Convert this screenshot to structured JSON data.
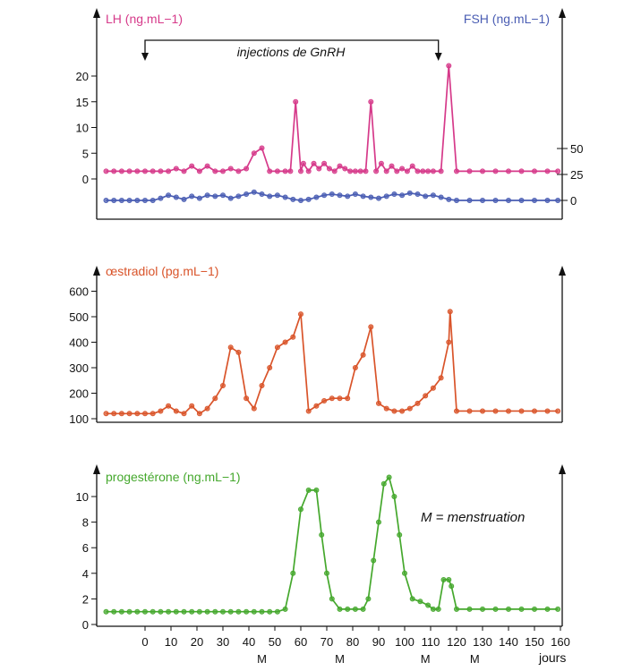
{
  "chart_data": [
    {
      "type": "line",
      "panel": "LH / FSH",
      "annotation": "injections de GnRH",
      "x_range": [
        -15,
        160
      ],
      "series": [
        {
          "name": "LH (ng.mL−1)",
          "axis": "left",
          "color": "#d63a8a",
          "ylim": [
            0,
            24
          ],
          "ticks": [
            0,
            5,
            10,
            15,
            20
          ],
          "x": [
            -15,
            -12,
            -9,
            -6,
            -3,
            0,
            3,
            6,
            9,
            12,
            15,
            18,
            21,
            24,
            27,
            30,
            33,
            36,
            39,
            42,
            45,
            48,
            51,
            54,
            56,
            58,
            60,
            61,
            63,
            65,
            67,
            69,
            71,
            73,
            75,
            77,
            79,
            81,
            83,
            85,
            87,
            89,
            91,
            93,
            95,
            97,
            99,
            101,
            103,
            105,
            107,
            109,
            111,
            114,
            117,
            120,
            125,
            130,
            135,
            140,
            145,
            150,
            155,
            159
          ],
          "values": [
            1.5,
            1.5,
            1.5,
            1.5,
            1.5,
            1.5,
            1.5,
            1.5,
            1.5,
            2,
            1.5,
            2.5,
            1.5,
            2.5,
            1.5,
            1.5,
            2,
            1.5,
            2,
            5,
            6,
            1.5,
            1.5,
            1.5,
            1.5,
            15,
            1.5,
            3,
            1.5,
            3,
            2,
            3,
            2,
            1.5,
            2.5,
            2,
            1.5,
            1.5,
            1.5,
            1.5,
            15,
            1.5,
            3,
            1.5,
            2.5,
            1.5,
            2,
            1.5,
            2.5,
            1.5,
            1.5,
            1.5,
            1.5,
            1.5,
            22,
            1.5,
            1.5,
            1.5,
            1.5,
            1.5,
            1.5,
            1.5,
            1.5,
            1.5
          ]
        },
        {
          "name": "FSH (ng.mL−1)",
          "axis": "right",
          "color": "#4a5db3",
          "ylim": [
            0,
            120
          ],
          "ticks": [
            0,
            25,
            50
          ],
          "x": [
            -15,
            -12,
            -9,
            -6,
            -3,
            0,
            3,
            6,
            9,
            12,
            15,
            18,
            21,
            24,
            27,
            30,
            33,
            36,
            39,
            42,
            45,
            48,
            51,
            54,
            57,
            60,
            63,
            66,
            69,
            72,
            75,
            78,
            81,
            84,
            87,
            90,
            93,
            96,
            99,
            102,
            105,
            108,
            111,
            114,
            117,
            120,
            125,
            130,
            135,
            140,
            145,
            150,
            155,
            159
          ],
          "values": [
            0,
            0,
            0,
            0,
            0,
            0,
            0,
            2,
            5,
            3,
            1,
            4,
            2,
            5,
            4,
            5,
            2,
            4,
            6,
            8,
            6,
            4,
            5,
            3,
            1,
            0,
            1,
            3,
            5,
            6,
            5,
            4,
            6,
            4,
            3,
            2,
            4,
            6,
            5,
            7,
            6,
            4,
            5,
            3,
            1,
            0,
            0,
            0,
            0,
            0,
            0,
            0,
            0,
            0
          ]
        }
      ]
    },
    {
      "type": "line",
      "panel": "oestradiol",
      "x_range": [
        -15,
        160
      ],
      "ylim": [
        100,
        650
      ],
      "yticks": [
        100,
        200,
        300,
        400,
        500,
        600
      ],
      "series": [
        {
          "name": "œstradiol (pg.mL−1)",
          "color": "#d9542a",
          "x": [
            -15,
            -12,
            -9,
            -6,
            -3,
            0,
            3,
            6,
            9,
            12,
            15,
            18,
            21,
            24,
            27,
            30,
            33,
            36,
            39,
            42,
            45,
            48,
            51,
            54,
            57,
            60,
            63,
            66,
            69,
            72,
            75,
            78,
            81,
            84,
            87,
            90,
            93,
            96,
            99,
            102,
            105,
            108,
            111,
            114,
            117,
            117.5,
            120,
            125,
            130,
            135,
            140,
            145,
            150,
            155,
            159
          ],
          "values": [
            120,
            120,
            120,
            120,
            120,
            120,
            120,
            130,
            150,
            130,
            120,
            150,
            120,
            140,
            180,
            230,
            380,
            360,
            180,
            140,
            230,
            300,
            380,
            400,
            420,
            510,
            130,
            150,
            170,
            180,
            180,
            180,
            300,
            350,
            460,
            160,
            140,
            130,
            130,
            140,
            160,
            190,
            220,
            260,
            400,
            520,
            130,
            130,
            130,
            130,
            130,
            130,
            130,
            130,
            130
          ]
        }
      ]
    },
    {
      "type": "line",
      "panel": "progesterone",
      "x_range": [
        -15,
        160
      ],
      "ylim": [
        0,
        12
      ],
      "yticks": [
        0,
        2,
        4,
        6,
        8,
        10
      ],
      "xticks": [
        0,
        10,
        20,
        30,
        40,
        50,
        60,
        70,
        80,
        90,
        100,
        110,
        120,
        130,
        140,
        150,
        160
      ],
      "xunit": "jours",
      "menses_marks": [
        45,
        75,
        108,
        127
      ],
      "menses_label": "M",
      "legend_note": "M = menstruation",
      "series": [
        {
          "name": "progestérone (ng.mL−1)",
          "color": "#45a82d",
          "x": [
            -15,
            -12,
            -9,
            -6,
            -3,
            0,
            3,
            6,
            9,
            12,
            15,
            18,
            21,
            24,
            27,
            30,
            33,
            36,
            39,
            42,
            45,
            48,
            51,
            54,
            57,
            60,
            63,
            66,
            68,
            70,
            72,
            75,
            78,
            81,
            84,
            86,
            88,
            90,
            92,
            94,
            96,
            98,
            100,
            103,
            106,
            109,
            111,
            113,
            115,
            117,
            118,
            120,
            125,
            130,
            135,
            140,
            145,
            150,
            155,
            159
          ],
          "values": [
            1,
            1,
            1,
            1,
            1,
            1,
            1,
            1,
            1,
            1,
            1,
            1,
            1,
            1,
            1,
            1,
            1,
            1,
            1,
            1,
            1,
            1,
            1,
            1.2,
            4,
            9,
            10.5,
            10.5,
            7,
            4,
            2,
            1.2,
            1.2,
            1.2,
            1.2,
            2,
            5,
            8,
            11,
            11.5,
            10,
            7,
            4,
            2,
            1.8,
            1.5,
            1.2,
            1.2,
            3.5,
            3.5,
            3,
            1.2,
            1.2,
            1.2,
            1.2,
            1.2,
            1.2,
            1.2,
            1.2,
            1.2
          ]
        }
      ]
    }
  ]
}
